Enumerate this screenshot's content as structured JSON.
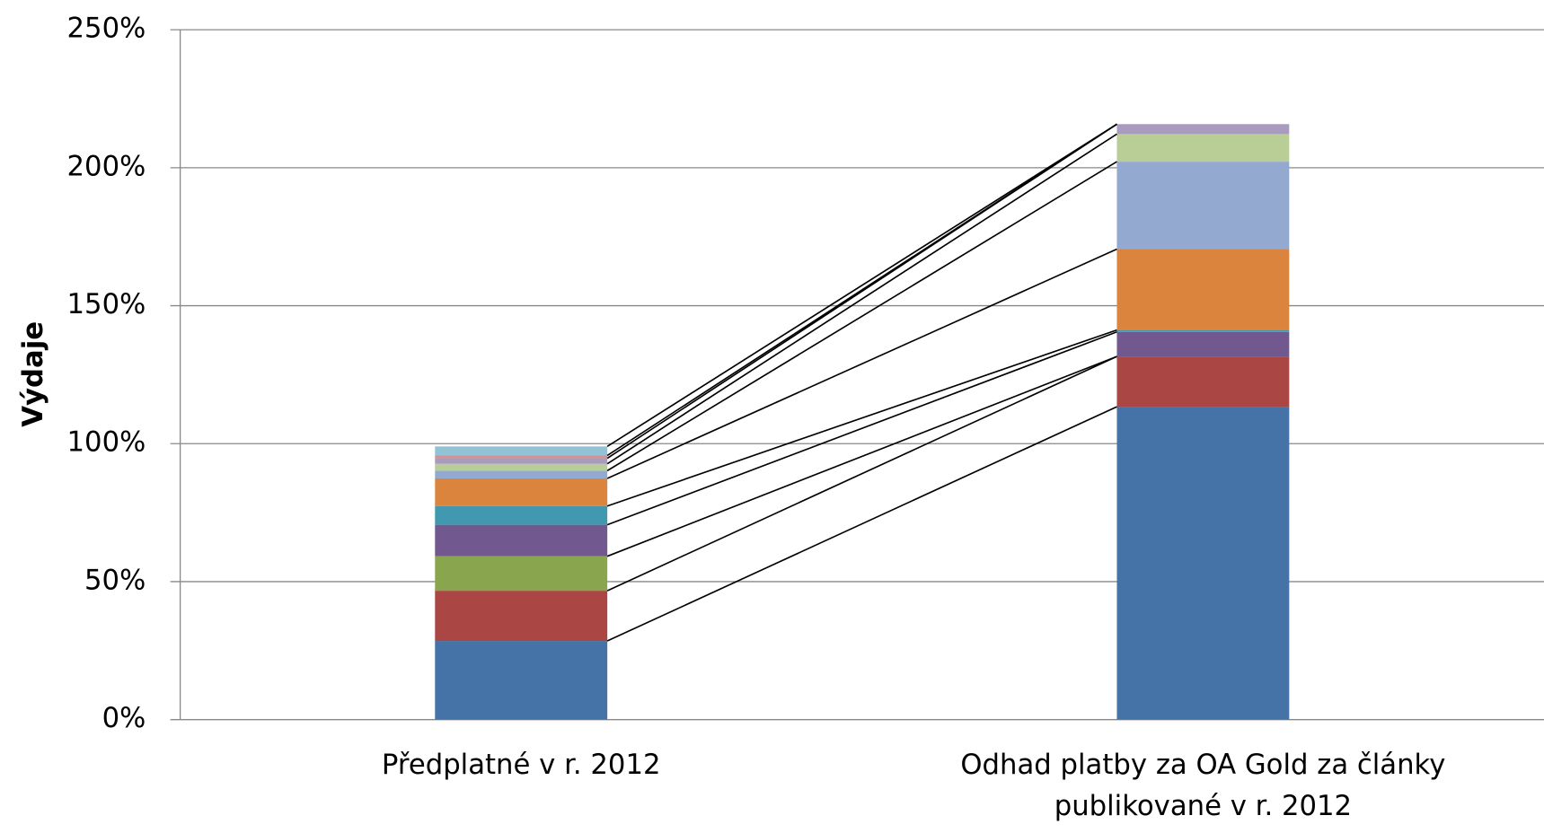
{
  "chart_data": {
    "type": "stacked_bar",
    "y_axis_label": "Výdaje",
    "categories": [
      "Předplatné v r. 2012",
      "Odhad platby za OA Gold za články publikované v r. 2012"
    ],
    "series": [
      {
        "color": "#4572a7",
        "values": [
          28.5,
          113.4
        ]
      },
      {
        "color": "#aa4643",
        "values": [
          18.2,
          18.2
        ]
      },
      {
        "color": "#89a54e",
        "values": [
          12.5,
          0
        ]
      },
      {
        "color": "#71588f",
        "values": [
          11.4,
          8.9
        ]
      },
      {
        "color": "#4198af",
        "values": [
          6.8,
          0.7
        ]
      },
      {
        "color": "#db843d",
        "values": [
          10.0,
          29.3
        ]
      },
      {
        "color": "#93a9cf",
        "values": [
          2.8,
          31.7
        ]
      },
      {
        "color": "#b9cd96",
        "values": [
          2.5,
          10.0
        ]
      },
      {
        "color": "#a99bbd",
        "values": [
          2.0,
          3.6
        ]
      },
      {
        "color": "#d19392",
        "values": [
          1.0,
          0
        ]
      },
      {
        "color": "#92c3d4",
        "values": [
          3.3,
          0
        ]
      }
    ],
    "ylim": [
      0,
      250
    ],
    "yticks": [
      {
        "value": 0,
        "label": "0%"
      },
      {
        "value": 50,
        "label": "50%"
      },
      {
        "value": 100,
        "label": "100%"
      },
      {
        "value": 150,
        "label": "150%"
      },
      {
        "value": 200,
        "label": "200%"
      },
      {
        "value": 250,
        "label": "250%"
      }
    ],
    "grid": true,
    "series_lines": true
  }
}
